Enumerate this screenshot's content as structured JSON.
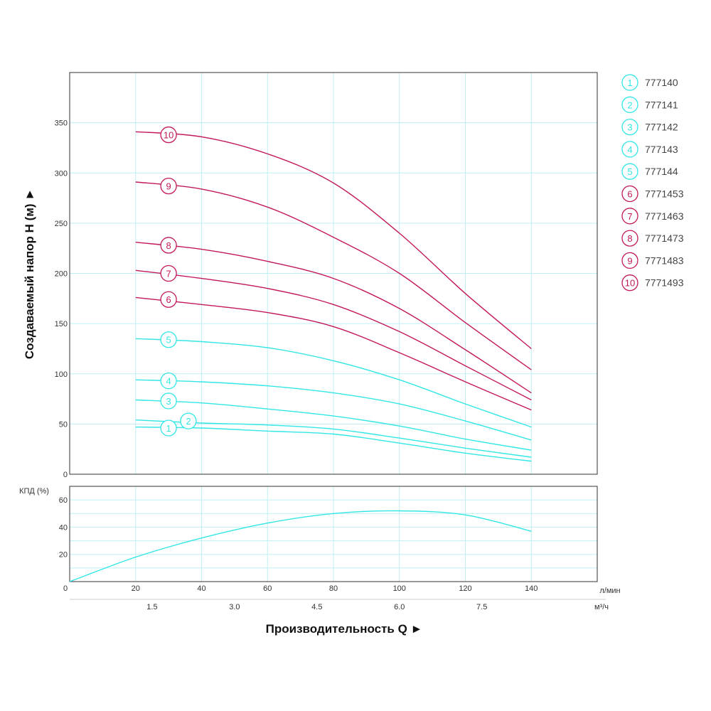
{
  "colors": {
    "cyan": "#33e6e6",
    "magenta": "#c2185b",
    "grid": "#bfeff2",
    "axis": "#333333"
  },
  "chart_data": [
    {
      "type": "line",
      "ylabel": "Создаваемый напор H (м) ►",
      "ylim": [
        0,
        400
      ],
      "yticks": [
        "0",
        "50",
        "100",
        "150",
        "200",
        "250",
        "300",
        "350"
      ],
      "xlim": [
        0,
        160
      ],
      "grid": true,
      "legend_position": "right",
      "series": [
        {
          "name": "777140",
          "label": "1",
          "color": "cyan",
          "x": [
            20,
            40,
            60,
            80,
            100,
            120,
            140
          ],
          "y": [
            47,
            46,
            43,
            40,
            31,
            21,
            13
          ],
          "badge_at": [
            30,
            46
          ]
        },
        {
          "name": "777141",
          "label": "2",
          "color": "cyan",
          "x": [
            20,
            40,
            60,
            80,
            100,
            120,
            140
          ],
          "y": [
            54,
            51,
            49,
            45,
            36,
            26,
            17
          ],
          "badge_at": [
            36,
            53
          ]
        },
        {
          "name": "777142",
          "label": "3",
          "color": "cyan",
          "x": [
            20,
            40,
            60,
            80,
            100,
            120,
            140
          ],
          "y": [
            74,
            71,
            65,
            58,
            48,
            35,
            24
          ],
          "badge_at": [
            30,
            73
          ]
        },
        {
          "name": "777143",
          "label": "4",
          "color": "cyan",
          "x": [
            20,
            40,
            60,
            80,
            100,
            120,
            140
          ],
          "y": [
            94,
            92,
            88,
            81,
            70,
            53,
            34
          ],
          "badge_at": [
            30,
            93
          ]
        },
        {
          "name": "777144",
          "label": "5",
          "color": "cyan",
          "x": [
            20,
            40,
            60,
            80,
            100,
            120,
            140
          ],
          "y": [
            135,
            132,
            126,
            113,
            94,
            70,
            47
          ],
          "badge_at": [
            30,
            134
          ]
        },
        {
          "name": "7771453",
          "label": "6",
          "color": "magenta",
          "x": [
            20,
            40,
            60,
            80,
            100,
            120,
            140
          ],
          "y": [
            176,
            169,
            161,
            147,
            121,
            92,
            64
          ],
          "badge_at": [
            30,
            174
          ]
        },
        {
          "name": "7771463",
          "label": "7",
          "color": "magenta",
          "x": [
            20,
            40,
            60,
            80,
            100,
            120,
            140
          ],
          "y": [
            203,
            195,
            185,
            169,
            142,
            108,
            74
          ],
          "badge_at": [
            30,
            200
          ]
        },
        {
          "name": "7771473",
          "label": "8",
          "color": "magenta",
          "x": [
            20,
            40,
            60,
            80,
            100,
            120,
            140
          ],
          "y": [
            231,
            224,
            212,
            195,
            165,
            124,
            81
          ],
          "badge_at": [
            30,
            228
          ]
        },
        {
          "name": "7771483",
          "label": "9",
          "color": "magenta",
          "x": [
            20,
            40,
            60,
            80,
            100,
            120,
            140
          ],
          "y": [
            291,
            284,
            266,
            236,
            200,
            151,
            104
          ],
          "badge_at": [
            30,
            287
          ]
        },
        {
          "name": "7771493",
          "label": "10",
          "color": "magenta",
          "x": [
            20,
            40,
            60,
            80,
            100,
            120,
            140
          ],
          "y": [
            341,
            336,
            319,
            290,
            240,
            180,
            125
          ],
          "badge_at": [
            30,
            338
          ]
        }
      ]
    },
    {
      "type": "line",
      "ylabel": "КПД (%)",
      "ylim": [
        0,
        70
      ],
      "yticks": [
        "20",
        "40",
        "60"
      ],
      "xlabel": "Производительность Q ►",
      "xlim": [
        0,
        160
      ],
      "xticks": [
        "0",
        "20",
        "40",
        "60",
        "80",
        "100",
        "120",
        "140"
      ],
      "x_unit": "л/мин",
      "x2ticks": [
        "1.5",
        "3.0",
        "4.5",
        "6.0",
        "7.5"
      ],
      "x2tick_positions": [
        25,
        50,
        75,
        100,
        125
      ],
      "x2_unit": "м³/ч",
      "grid": true,
      "series": [
        {
          "color": "cyan",
          "x": [
            0,
            20,
            40,
            60,
            80,
            100,
            120,
            140
          ],
          "y": [
            0,
            18,
            32,
            43,
            50,
            52,
            49,
            37
          ]
        }
      ]
    }
  ]
}
